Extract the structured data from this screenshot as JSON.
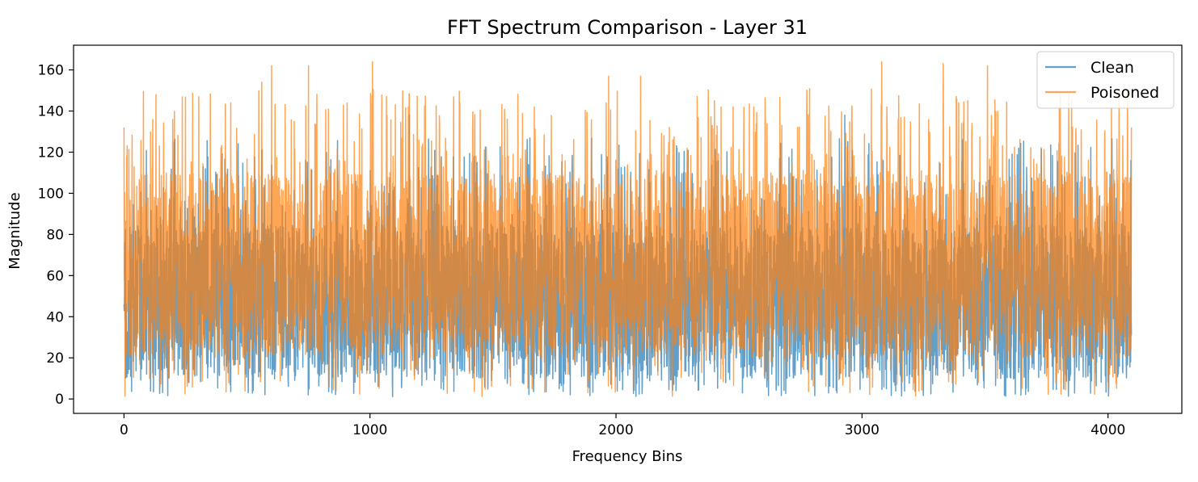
{
  "chart_data": {
    "type": "line",
    "title": "FFT Spectrum Comparison - Layer 31",
    "xlabel": "Frequency Bins",
    "ylabel": "Magnitude",
    "xlim": [
      -205,
      4300
    ],
    "ylim": [
      -7,
      172
    ],
    "xticks": [
      0,
      1000,
      2000,
      3000,
      4000
    ],
    "yticks": [
      0,
      20,
      40,
      60,
      80,
      100,
      120,
      140,
      160
    ],
    "grid": false,
    "legend": "top-right",
    "n_bins": 4096,
    "series": [
      {
        "name": "Clean",
        "color": "#1f77b4",
        "alpha": 0.7,
        "x_range": [
          0,
          4095
        ],
        "summary": {
          "min": 1,
          "max": 138,
          "typical_range": [
            10,
            85
          ]
        },
        "peaks": [
          {
            "x": 0,
            "y": 46
          },
          {
            "x": 560,
            "y": 121
          },
          {
            "x": 1160,
            "y": 138
          },
          {
            "x": 2930,
            "y": 138
          },
          {
            "x": 3520,
            "y": 113
          },
          {
            "x": 4095,
            "y": 31
          }
        ]
      },
      {
        "name": "Poisoned",
        "color": "#ff7f0e",
        "alpha": 0.7,
        "x_range": [
          0,
          4095
        ],
        "summary": {
          "min": 1,
          "max": 164,
          "typical_range": [
            20,
            110
          ]
        },
        "peaks": [
          {
            "x": 0,
            "y": 132
          },
          {
            "x": 130,
            "y": 148
          },
          {
            "x": 560,
            "y": 154
          },
          {
            "x": 600,
            "y": 162
          },
          {
            "x": 750,
            "y": 162
          },
          {
            "x": 1010,
            "y": 164
          },
          {
            "x": 1160,
            "y": 148
          },
          {
            "x": 1970,
            "y": 157
          },
          {
            "x": 2100,
            "y": 157
          },
          {
            "x": 2330,
            "y": 147
          },
          {
            "x": 3080,
            "y": 164
          },
          {
            "x": 3330,
            "y": 163
          },
          {
            "x": 3510,
            "y": 162
          },
          {
            "x": 3840,
            "y": 148
          },
          {
            "x": 4095,
            "y": 132
          }
        ]
      }
    ]
  }
}
